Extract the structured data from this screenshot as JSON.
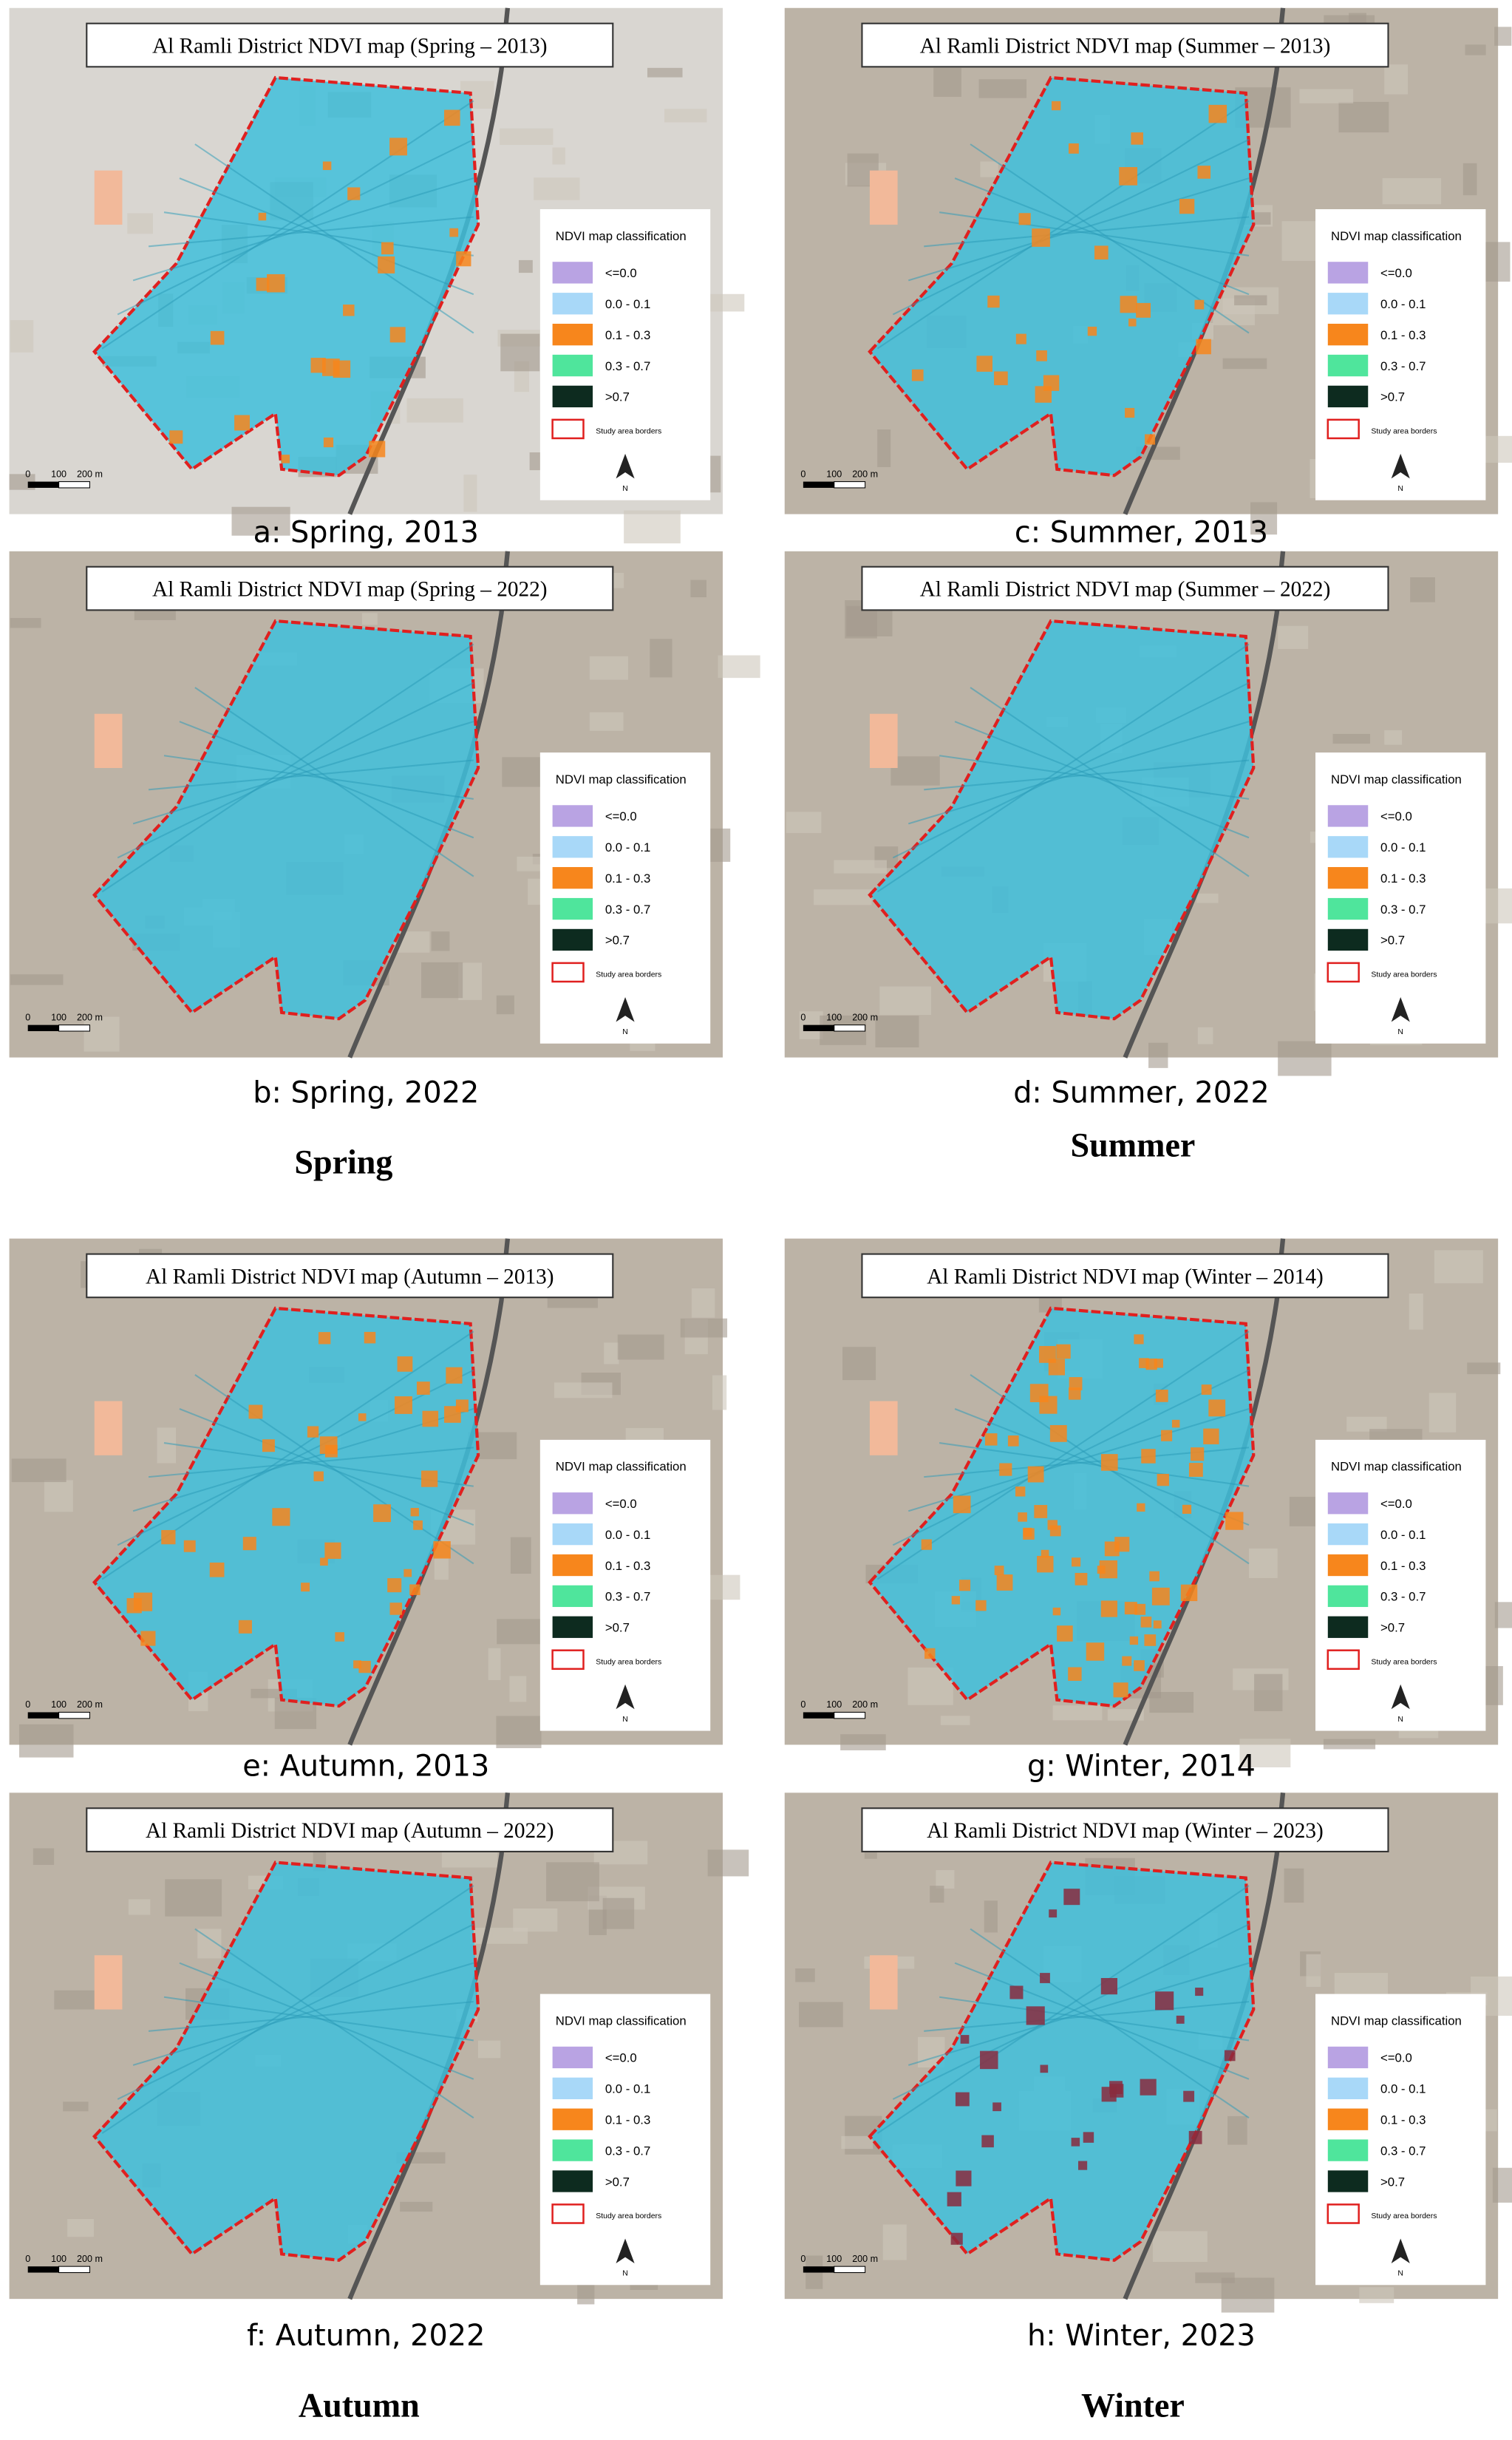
{
  "legend": {
    "title": "NDVI map classification",
    "items": [
      {
        "label": "<=0.0",
        "color": "#b9a3e3"
      },
      {
        "label": "0.0 - 0.1",
        "color": "#a8d8f8"
      },
      {
        "label": "0.1 - 0.3",
        "color": "#f7861c"
      },
      {
        "label": "0.3 - 0.7",
        "color": "#4fe59c"
      },
      {
        "label": ">0.7",
        "color": "#0d2b1f"
      }
    ],
    "border_label": "Study area borders",
    "north": "N"
  },
  "scale_bar": [
    "0",
    "100",
    "200 m"
  ],
  "panels": [
    {
      "title": "Al Ramli District NDVI map (Spring – 2013)",
      "caption": "a: Spring, 2013"
    },
    {
      "title": "Al Ramli District NDVI map (Spring – 2022)",
      "caption": "b: Spring, 2022"
    },
    {
      "title": "Al Ramli District NDVI map (Summer – 2013)",
      "caption": "c: Summer, 2013"
    },
    {
      "title": "Al Ramli District NDVI map (Summer – 2022)",
      "caption": "d: Summer, 2022"
    },
    {
      "title": "Al Ramli District NDVI map (Autumn – 2013)",
      "caption": "e: Autumn, 2013"
    },
    {
      "title": "Al Ramli District NDVI map (Autumn – 2022)",
      "caption": "f: Autumn, 2022"
    },
    {
      "title": "Al Ramli District NDVI map (Winter – 2014)",
      "caption": "g: Winter, 2014"
    },
    {
      "title": "Al Ramli District NDVI map (Winter – 2023)",
      "caption": "h: Winter, 2023"
    }
  ],
  "seasons": [
    "Spring",
    "Summer",
    "Autumn",
    "Winter"
  ]
}
